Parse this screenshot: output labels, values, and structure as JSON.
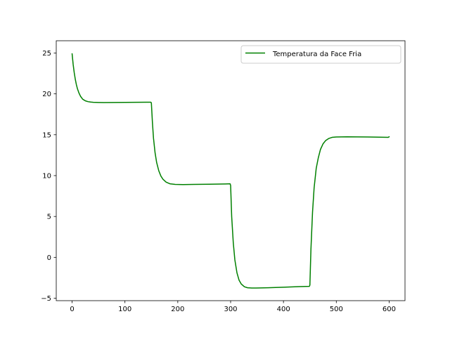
{
  "chart_data": {
    "type": "line",
    "title": "",
    "xlabel": "",
    "ylabel": "",
    "xlim": [
      -30,
      630
    ],
    "ylim": [
      -5.3,
      26.5
    ],
    "xticks": [
      0,
      100,
      200,
      300,
      400,
      500,
      600
    ],
    "yticks": [
      -5,
      0,
      5,
      10,
      15,
      20,
      25
    ],
    "grid": false,
    "legend": {
      "placement": "upper right"
    },
    "colors": {
      "series": "#008000",
      "axes": "#000000",
      "background": "#ffffff"
    },
    "series": [
      {
        "name": "Temperatura da Face Fria",
        "color": "#008000",
        "x": [
          0,
          2,
          4,
          6,
          8,
          10,
          13,
          16,
          20,
          25,
          30,
          35,
          40,
          50,
          60,
          80,
          100,
          120,
          140,
          149,
          150,
          152,
          154,
          157,
          160,
          164,
          168,
          172,
          178,
          185,
          195,
          210,
          230,
          260,
          290,
          299,
          300,
          302,
          305,
          308,
          312,
          316,
          320,
          326,
          332,
          340,
          348,
          356,
          370,
          400,
          430,
          449,
          450,
          452,
          455,
          458,
          462,
          466,
          470,
          475,
          480,
          486,
          492,
          500,
          510,
          520,
          540,
          560,
          580,
          598,
          600
        ],
        "y": [
          24.9,
          23.6,
          22.6,
          21.8,
          21.15,
          20.65,
          20.1,
          19.7,
          19.35,
          19.15,
          19.05,
          19.0,
          18.97,
          18.95,
          18.94,
          18.95,
          18.96,
          18.97,
          18.98,
          18.98,
          18.9,
          16.5,
          14.6,
          12.8,
          11.6,
          10.6,
          9.95,
          9.55,
          9.2,
          9.0,
          8.92,
          8.9,
          8.92,
          8.95,
          8.98,
          9.0,
          8.8,
          5.0,
          1.8,
          -0.3,
          -1.9,
          -2.8,
          -3.25,
          -3.6,
          -3.72,
          -3.75,
          -3.75,
          -3.74,
          -3.72,
          -3.66,
          -3.58,
          -3.55,
          -3.4,
          1.0,
          5.5,
          8.5,
          10.9,
          12.2,
          13.2,
          13.9,
          14.3,
          14.55,
          14.68,
          14.72,
          14.74,
          14.75,
          14.74,
          14.72,
          14.7,
          14.68,
          14.75
        ]
      }
    ]
  }
}
